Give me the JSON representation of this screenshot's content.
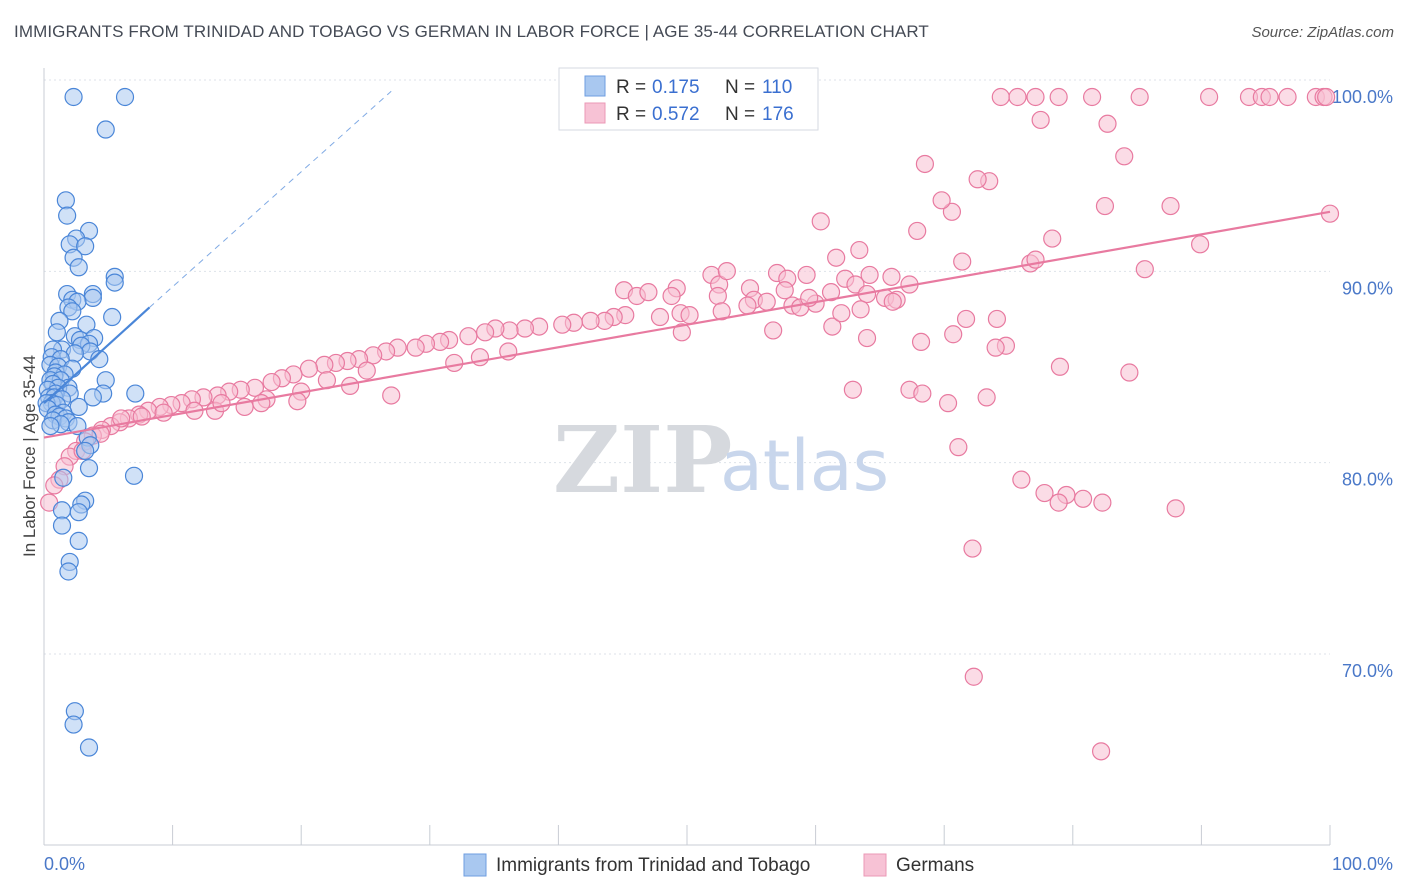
{
  "title": "IMMIGRANTS FROM TRINIDAD AND TOBAGO VS GERMAN IN LABOR FORCE | AGE 35-44 CORRELATION CHART",
  "source": "Source: ZipAtlas.com",
  "watermark": {
    "zip": "ZIP",
    "atlas": "atlas"
  },
  "colors": {
    "blue": "#4a86d8",
    "blue_fill": "#a9c8f0",
    "pink": "#e87aa0",
    "pink_fill": "#f7bfd2",
    "tick_text": "#4a78c8",
    "grid": "#dde2ea"
  },
  "legend": {
    "rows": [
      {
        "r_label": "R =",
        "r_value": "0.175",
        "n_label": "N =",
        "n_value": "110",
        "color": "blue"
      },
      {
        "r_label": "R =",
        "r_value": "0.572",
        "n_label": "N =",
        "n_value": "176",
        "color": "pink"
      }
    ]
  },
  "chart_data": {
    "type": "scatter",
    "title": "IMMIGRANTS FROM TRINIDAD AND TOBAGO VS GERMAN IN LABOR FORCE | AGE 35-44 CORRELATION CHART",
    "xlabel": "",
    "ylabel": "In Labor Force | Age 35-44",
    "xlim": [
      0,
      100
    ],
    "ylim": [
      60,
      101.5
    ],
    "x_ticks": [
      "0.0%",
      "100.0%"
    ],
    "y_ticks": [
      {
        "value": 70,
        "label": "70.0%"
      },
      {
        "value": 80,
        "label": "80.0%"
      },
      {
        "value": 90,
        "label": "90.0%"
      },
      {
        "value": 100,
        "label": "100.0%"
      }
    ],
    "grid": true,
    "legend_position": "bottom",
    "series": [
      {
        "name": "Immigrants from Trinidad and Tobago",
        "color": "blue",
        "trend": {
          "x1": 0,
          "y1": 84.0,
          "x2": 8.2,
          "y2": 89.0,
          "dash_to_x": 27,
          "dash_to_y": 100.3
        },
        "points": [
          [
            2.3,
            100
          ],
          [
            6.3,
            100
          ],
          [
            4.8,
            98.3
          ],
          [
            1.7,
            94.6
          ],
          [
            1.8,
            93.8
          ],
          [
            3.5,
            93
          ],
          [
            2.5,
            92.6
          ],
          [
            2.0,
            92.3
          ],
          [
            3.2,
            92.2
          ],
          [
            2.3,
            91.6
          ],
          [
            2.7,
            91.1
          ],
          [
            5.5,
            90.6
          ],
          [
            5.5,
            90.3
          ],
          [
            1.8,
            89.7
          ],
          [
            3.8,
            89.7
          ],
          [
            3.8,
            89.5
          ],
          [
            2.2,
            89.4
          ],
          [
            2.6,
            89.3
          ],
          [
            1.9,
            89.0
          ],
          [
            2.2,
            88.8
          ],
          [
            5.3,
            88.5
          ],
          [
            1.2,
            88.3
          ],
          [
            3.3,
            88.1
          ],
          [
            1.0,
            87.7
          ],
          [
            2.4,
            87.5
          ],
          [
            3.9,
            87.4
          ],
          [
            2.8,
            87.3
          ],
          [
            3.5,
            87.1
          ],
          [
            2.9,
            87.0
          ],
          [
            1.4,
            86.8
          ],
          [
            0.7,
            86.8
          ],
          [
            3.6,
            86.7
          ],
          [
            2.4,
            86.6
          ],
          [
            0.6,
            86.4
          ],
          [
            1.3,
            86.3
          ],
          [
            4.3,
            86.3
          ],
          [
            0.5,
            86.0
          ],
          [
            1.1,
            85.9
          ],
          [
            2.2,
            85.8
          ],
          [
            0.9,
            85.6
          ],
          [
            1.6,
            85.5
          ],
          [
            0.8,
            85.4
          ],
          [
            0.5,
            85.2
          ],
          [
            1.3,
            85.2
          ],
          [
            4.8,
            85.2
          ],
          [
            0.7,
            85.0
          ],
          [
            1.9,
            84.8
          ],
          [
            1.1,
            84.8
          ],
          [
            0.3,
            84.7
          ],
          [
            2.0,
            84.5
          ],
          [
            0.9,
            84.5
          ],
          [
            4.6,
            84.5
          ],
          [
            7.1,
            84.5
          ],
          [
            0.4,
            84.3
          ],
          [
            0.8,
            84.3
          ],
          [
            3.8,
            84.3
          ],
          [
            1.4,
            84.2
          ],
          [
            0.6,
            84.0
          ],
          [
            0.2,
            84.0
          ],
          [
            1.0,
            83.9
          ],
          [
            2.7,
            83.8
          ],
          [
            0.3,
            83.7
          ],
          [
            1.5,
            83.5
          ],
          [
            0.9,
            83.4
          ],
          [
            1.2,
            83.3
          ],
          [
            1.7,
            83.2
          ],
          [
            0.7,
            83.1
          ],
          [
            1.9,
            83.0
          ],
          [
            1.3,
            82.9
          ],
          [
            2.6,
            82.8
          ],
          [
            0.5,
            82.8
          ],
          [
            3.4,
            82.2
          ],
          [
            3.6,
            81.8
          ],
          [
            3.2,
            81.5
          ],
          [
            3.5,
            80.6
          ],
          [
            7.0,
            80.2
          ],
          [
            1.5,
            80.1
          ],
          [
            3.2,
            78.9
          ],
          [
            2.9,
            78.7
          ],
          [
            1.4,
            78.4
          ],
          [
            2.7,
            78.3
          ],
          [
            1.4,
            77.6
          ],
          [
            2.7,
            76.8
          ],
          [
            2.0,
            75.7
          ],
          [
            1.9,
            75.2
          ],
          [
            2.4,
            67.9
          ],
          [
            2.3,
            67.2
          ],
          [
            3.5,
            66.0
          ]
        ]
      },
      {
        "name": "Germans",
        "color": "pink",
        "trend": {
          "x1": 0,
          "y1": 82.2,
          "x2": 100,
          "y2": 94.0
        },
        "points": [
          [
            74.4,
            100
          ],
          [
            75.7,
            100
          ],
          [
            77.1,
            100
          ],
          [
            78.9,
            100
          ],
          [
            81.5,
            100
          ],
          [
            85.2,
            100
          ],
          [
            90.6,
            100
          ],
          [
            93.7,
            100
          ],
          [
            94.7,
            100
          ],
          [
            95.3,
            100
          ],
          [
            96.7,
            100
          ],
          [
            98.9,
            100
          ],
          [
            99.5,
            100
          ],
          [
            99.7,
            100
          ],
          [
            77.5,
            98.8
          ],
          [
            82.7,
            98.6
          ],
          [
            84.0,
            96.9
          ],
          [
            68.5,
            96.5
          ],
          [
            73.5,
            95.6
          ],
          [
            82.5,
            94.3
          ],
          [
            70.6,
            94.0
          ],
          [
            100,
            93.9
          ],
          [
            60.4,
            93.5
          ],
          [
            67.9,
            93.0
          ],
          [
            78.4,
            92.6
          ],
          [
            63.4,
            92.0
          ],
          [
            61.6,
            91.6
          ],
          [
            71.4,
            91.4
          ],
          [
            76.7,
            91.3
          ],
          [
            85.6,
            91.0
          ],
          [
            57.0,
            90.8
          ],
          [
            59.3,
            90.7
          ],
          [
            51.9,
            90.7
          ],
          [
            64.2,
            90.7
          ],
          [
            62.3,
            90.5
          ],
          [
            65.9,
            90.6
          ],
          [
            57.8,
            90.5
          ],
          [
            63.1,
            90.2
          ],
          [
            52.5,
            90.2
          ],
          [
            67.3,
            90.2
          ],
          [
            49.2,
            90.0
          ],
          [
            54.9,
            90.0
          ],
          [
            57.6,
            89.9
          ],
          [
            61.2,
            89.8
          ],
          [
            64.0,
            89.7
          ],
          [
            52.4,
            89.6
          ],
          [
            45.1,
            89.9
          ],
          [
            46.1,
            89.6
          ],
          [
            47.0,
            89.8
          ],
          [
            48.8,
            89.6
          ],
          [
            65.4,
            89.5
          ],
          [
            66.3,
            89.4
          ],
          [
            55.2,
            89.4
          ],
          [
            56.2,
            89.3
          ],
          [
            60.0,
            89.2
          ],
          [
            58.2,
            89.1
          ],
          [
            58.8,
            89.0
          ],
          [
            52.7,
            88.8
          ],
          [
            49.5,
            88.7
          ],
          [
            50.2,
            88.6
          ],
          [
            47.9,
            88.5
          ],
          [
            45.2,
            88.6
          ],
          [
            44.3,
            88.5
          ],
          [
            43.6,
            88.3
          ],
          [
            42.5,
            88.3
          ],
          [
            41.2,
            88.2
          ],
          [
            40.3,
            88.1
          ],
          [
            38.5,
            88.0
          ],
          [
            37.4,
            87.9
          ],
          [
            36.2,
            87.8
          ],
          [
            35.1,
            87.9
          ],
          [
            34.3,
            87.7
          ],
          [
            33.0,
            87.5
          ],
          [
            31.5,
            87.3
          ],
          [
            30.8,
            87.2
          ],
          [
            29.7,
            87.1
          ],
          [
            28.9,
            86.9
          ],
          [
            27.5,
            86.9
          ],
          [
            26.6,
            86.7
          ],
          [
            25.6,
            86.5
          ],
          [
            24.5,
            86.3
          ],
          [
            23.6,
            86.2
          ],
          [
            22.7,
            86.1
          ],
          [
            21.8,
            86.0
          ],
          [
            20.6,
            85.8
          ],
          [
            19.4,
            85.5
          ],
          [
            18.5,
            85.3
          ],
          [
            17.7,
            85.1
          ],
          [
            16.4,
            84.8
          ],
          [
            15.3,
            84.7
          ],
          [
            14.4,
            84.6
          ],
          [
            13.5,
            84.4
          ],
          [
            12.4,
            84.3
          ],
          [
            11.5,
            84.2
          ],
          [
            10.7,
            84.0
          ],
          [
            9.9,
            83.9
          ],
          [
            9.0,
            83.8
          ],
          [
            8.1,
            83.6
          ],
          [
            7.4,
            83.4
          ],
          [
            6.6,
            83.2
          ],
          [
            5.9,
            83.0
          ],
          [
            5.2,
            82.8
          ],
          [
            4.5,
            82.6
          ],
          [
            3.8,
            82.3
          ],
          [
            3.2,
            82.0
          ],
          [
            2.5,
            81.5
          ],
          [
            2.0,
            81.2
          ],
          [
            1.6,
            80.7
          ],
          [
            1.2,
            80.0
          ],
          [
            0.8,
            79.7
          ],
          [
            0.4,
            78.8
          ],
          [
            72.6,
            95.7
          ],
          [
            69.8,
            94.6
          ],
          [
            87.6,
            94.3
          ],
          [
            89.9,
            92.3
          ],
          [
            77.1,
            91.5
          ],
          [
            53.1,
            90.9
          ],
          [
            56.7,
            87.8
          ],
          [
            59.5,
            89.5
          ],
          [
            54.7,
            89.1
          ],
          [
            74.1,
            88.4
          ],
          [
            71.7,
            88.4
          ],
          [
            61.3,
            88.0
          ],
          [
            62.0,
            88.7
          ],
          [
            68.2,
            87.2
          ],
          [
            70.7,
            87.6
          ],
          [
            49.6,
            87.7
          ],
          [
            36.1,
            86.7
          ],
          [
            33.9,
            86.4
          ],
          [
            31.9,
            86.1
          ],
          [
            25.1,
            85.7
          ],
          [
            22.0,
            85.2
          ],
          [
            20.0,
            84.6
          ],
          [
            17.3,
            84.2
          ],
          [
            15.6,
            83.8
          ],
          [
            13.3,
            83.6
          ],
          [
            11.7,
            83.6
          ],
          [
            9.3,
            83.5
          ],
          [
            7.6,
            83.3
          ],
          [
            6.0,
            83.2
          ],
          [
            4.4,
            82.4
          ],
          [
            3.0,
            81.5
          ],
          [
            66.0,
            89.3
          ],
          [
            63.5,
            88.9
          ],
          [
            62.9,
            84.7
          ],
          [
            67.3,
            84.7
          ],
          [
            68.3,
            84.5
          ],
          [
            70.3,
            84.0
          ],
          [
            71.1,
            81.7
          ],
          [
            76.0,
            80.0
          ],
          [
            77.8,
            79.3
          ],
          [
            79.5,
            79.2
          ],
          [
            80.8,
            79.0
          ],
          [
            82.3,
            78.8
          ],
          [
            88.0,
            78.5
          ],
          [
            78.9,
            78.8
          ],
          [
            72.2,
            76.4
          ],
          [
            72.3,
            69.7
          ],
          [
            82.2,
            65.8
          ],
          [
            74.8,
            87.0
          ],
          [
            74.0,
            86.9
          ],
          [
            64.0,
            87.4
          ],
          [
            84.4,
            85.6
          ],
          [
            79.0,
            85.9
          ],
          [
            73.3,
            84.3
          ],
          [
            23.8,
            84.9
          ],
          [
            27.0,
            84.4
          ],
          [
            19.7,
            84.1
          ],
          [
            16.9,
            84.0
          ],
          [
            13.8,
            84.0
          ]
        ]
      }
    ]
  }
}
